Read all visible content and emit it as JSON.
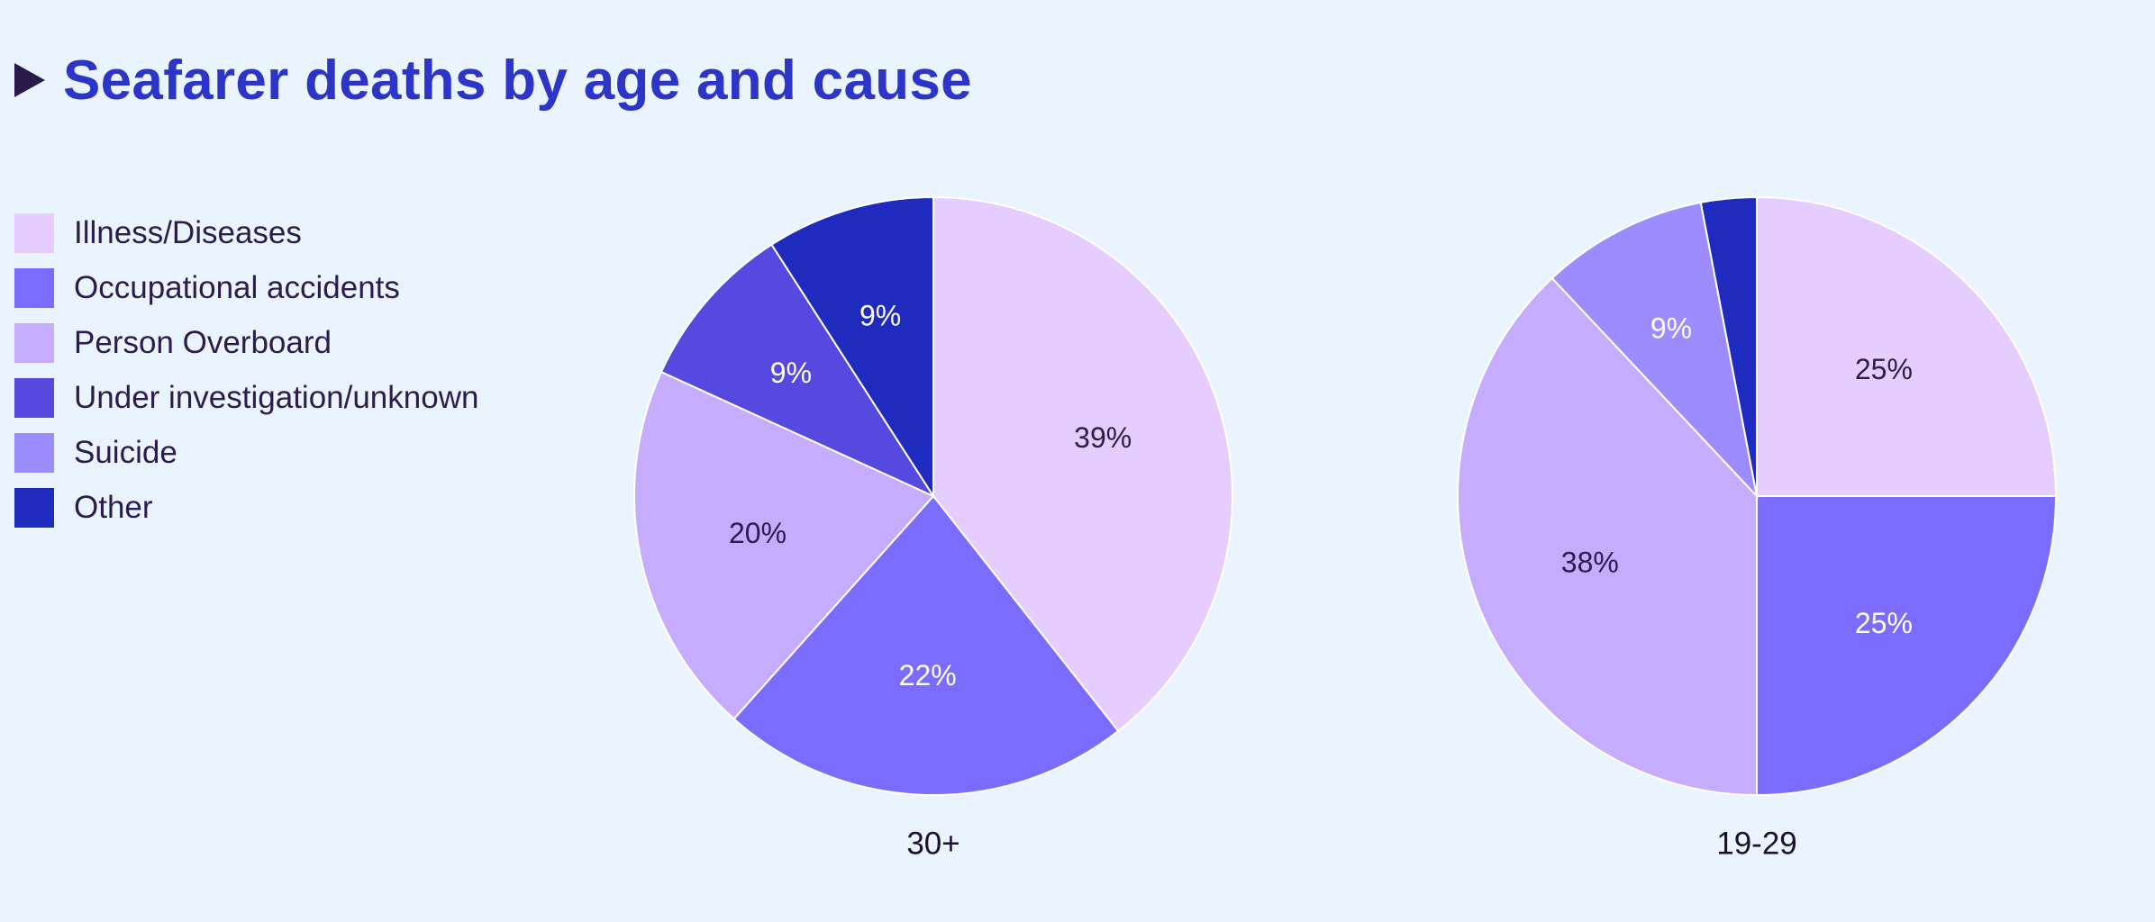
{
  "title": "Seafarer deaths by age and cause",
  "colors": {
    "background": "#eaf4fe",
    "title": "#2d35c9",
    "Illness/Diseases": "#e6cdff",
    "Occupational accidents": "#7a6cff",
    "Person Overboard": "#c5acff",
    "Under investigation/unknown": "#5549e0",
    "Suicide": "#9d8cff",
    "Other": "#1f2bbf"
  },
  "legend": {
    "items": [
      {
        "label": "Illness/Diseases",
        "color": "#e6cdff"
      },
      {
        "label": "Occupational accidents",
        "color": "#7a6cff"
      },
      {
        "label": "Person Overboard",
        "color": "#c5acff"
      },
      {
        "label": "Under investigation/unknown",
        "color": "#5549e0"
      },
      {
        "label": "Suicide",
        "color": "#9d8cff"
      },
      {
        "label": "Other",
        "color": "#1f2bbf"
      }
    ]
  },
  "chart_data": [
    {
      "type": "pie",
      "caption": "30+",
      "slices": [
        {
          "category": "Illness/Diseases",
          "value": 39,
          "label": "39%",
          "label_color": "#2b1c4d"
        },
        {
          "category": "Occupational accidents",
          "value": 22,
          "label": "22%",
          "label_color": "#ffffff"
        },
        {
          "category": "Person Overboard",
          "value": 20,
          "label": "20%",
          "label_color": "#2b1c4d"
        },
        {
          "category": "Under investigation/unknown",
          "value": 9,
          "label": "9%",
          "label_color": "#ffffff"
        },
        {
          "category": "Other",
          "value": 9,
          "label": "9%",
          "label_color": "#ffffff"
        }
      ]
    },
    {
      "type": "pie",
      "caption": "19-29",
      "slices": [
        {
          "category": "Illness/Diseases",
          "value": 25,
          "label": "25%",
          "label_color": "#2b1c4d"
        },
        {
          "category": "Occupational accidents",
          "value": 25,
          "label": "25%",
          "label_color": "#ffffff"
        },
        {
          "category": "Person Overboard",
          "value": 38,
          "label": "38%",
          "label_color": "#2b1c4d"
        },
        {
          "category": "Suicide",
          "value": 9,
          "label": "9%",
          "label_color": "#ffffff"
        },
        {
          "category": "Other",
          "value": 3,
          "label": "",
          "label_color": "#ffffff"
        }
      ]
    }
  ]
}
